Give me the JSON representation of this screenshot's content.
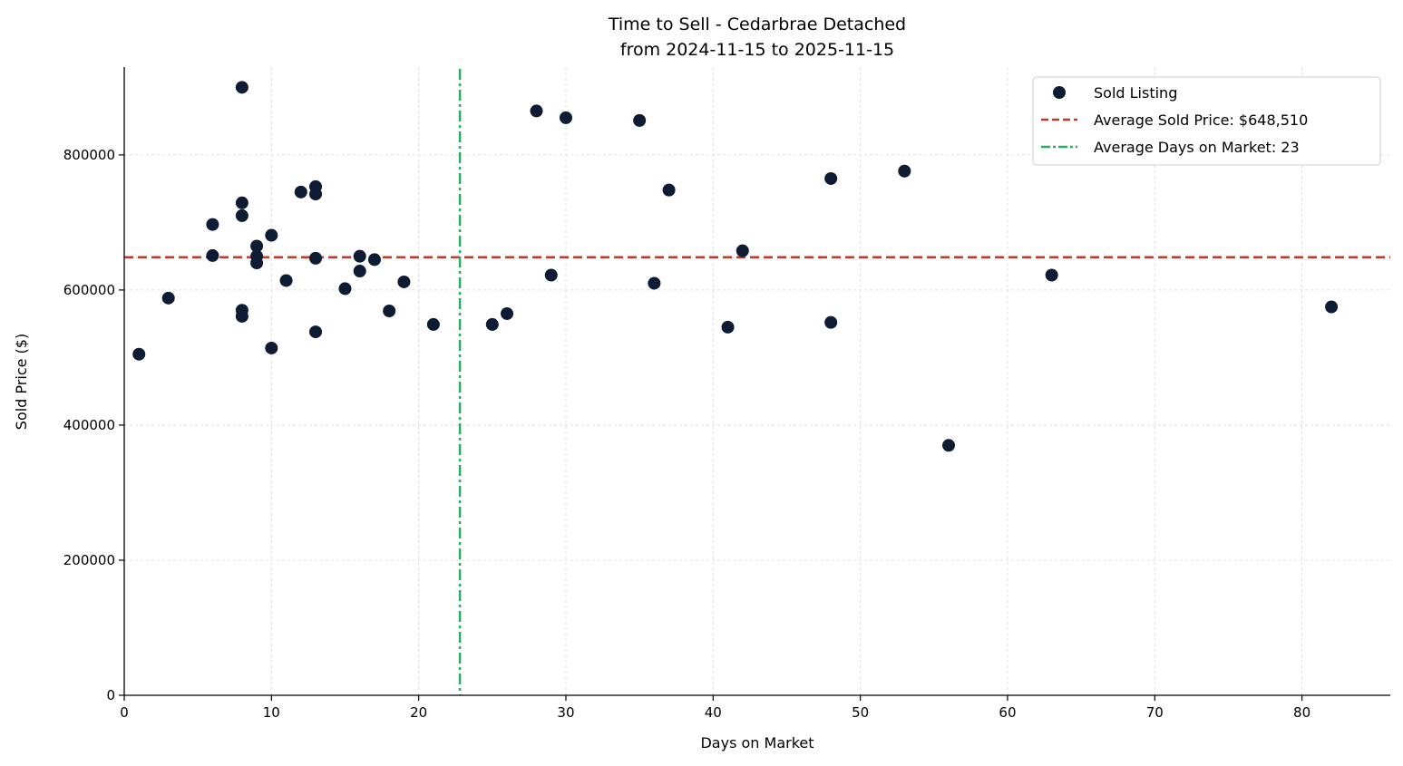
{
  "chart_data": {
    "type": "scatter",
    "title": "Time to Sell - Cedarbrae Detached",
    "subtitle": "from 2024-11-15 to 2025-11-15",
    "xlabel": "Days on Market",
    "ylabel": "Sold Price ($)",
    "xlim": [
      0,
      86
    ],
    "ylim": [
      0,
      930000
    ],
    "xticks": [
      0,
      10,
      20,
      30,
      40,
      50,
      60,
      70,
      80
    ],
    "yticks": [
      0,
      200000,
      400000,
      600000,
      800000
    ],
    "xtick_labels": [
      "0",
      "10",
      "20",
      "30",
      "40",
      "50",
      "60",
      "70",
      "80"
    ],
    "ytick_labels": [
      "0",
      "200000",
      "400000",
      "600000",
      "800000"
    ],
    "grid": true,
    "legend_position": "top-right",
    "series": [
      {
        "name": "Sold Listing",
        "color": "#0d1b33",
        "points": [
          [
            1,
            505000
          ],
          [
            3,
            588000
          ],
          [
            6,
            697000
          ],
          [
            6,
            651000
          ],
          [
            8,
            900000
          ],
          [
            8,
            729000
          ],
          [
            8,
            710000
          ],
          [
            8,
            570000
          ],
          [
            8,
            561000
          ],
          [
            9,
            665000
          ],
          [
            9,
            650000
          ],
          [
            9,
            640000
          ],
          [
            10,
            681000
          ],
          [
            10,
            514000
          ],
          [
            11,
            614000
          ],
          [
            12,
            745000
          ],
          [
            13,
            753000
          ],
          [
            13,
            742000
          ],
          [
            13,
            647000
          ],
          [
            13,
            538000
          ],
          [
            15,
            602000
          ],
          [
            16,
            650000
          ],
          [
            16,
            628000
          ],
          [
            17,
            645000
          ],
          [
            18,
            569000
          ],
          [
            19,
            612000
          ],
          [
            21,
            549000
          ],
          [
            25,
            549000
          ],
          [
            26,
            565000
          ],
          [
            28,
            865000
          ],
          [
            29,
            622000
          ],
          [
            30,
            855000
          ],
          [
            35,
            851000
          ],
          [
            36,
            610000
          ],
          [
            37,
            748000
          ],
          [
            41,
            545000
          ],
          [
            42,
            658000
          ],
          [
            48,
            765000
          ],
          [
            48,
            552000
          ],
          [
            53,
            776000
          ],
          [
            56,
            370000
          ],
          [
            63,
            622000
          ],
          [
            82,
            575000
          ]
        ]
      }
    ],
    "reference_lines": [
      {
        "name": "Average Sold Price",
        "label": "Average Sold Price: $648,510",
        "orientation": "horizontal",
        "value": 648510,
        "style": "dashed",
        "color": "#c0392b"
      },
      {
        "name": "Average Days on Market",
        "label": "Average Days on Market: 23",
        "orientation": "vertical",
        "value": 22.8,
        "style": "dashdot",
        "color": "#27ae60"
      }
    ],
    "legend": [
      {
        "label": "Sold Listing",
        "kind": "marker",
        "color": "#0d1b33"
      },
      {
        "label": "Average Sold Price: $648,510",
        "kind": "dashed",
        "color": "#c0392b"
      },
      {
        "label": "Average Days on Market: 23",
        "kind": "dashdot",
        "color": "#27ae60"
      }
    ]
  }
}
